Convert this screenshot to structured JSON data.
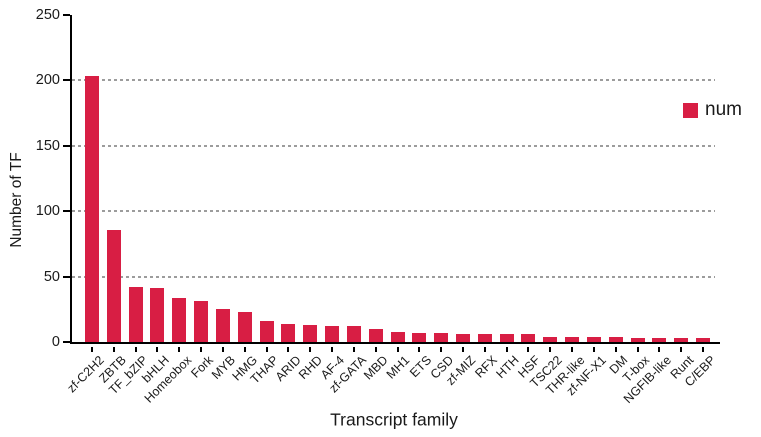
{
  "chart_data": {
    "type": "bar",
    "title": "",
    "xlabel": "Transcript family",
    "ylabel": "Number of TF",
    "series_name": "num",
    "bar_color": "#d81e44",
    "axis_color": "#000000",
    "gridline_color": "#9c9c9c",
    "text_color": "#1a1a1a",
    "grid": "horizontal dashed",
    "legend_position": "right",
    "ylim": [
      0,
      250
    ],
    "yticks": [
      0,
      50,
      100,
      150,
      200,
      250
    ],
    "gridlines": [
      50,
      100,
      150,
      200
    ],
    "categories": [
      "zf-C2H2",
      "ZBTB",
      "TF_bZIP",
      "bHLH",
      "Homeobox",
      "Fork",
      "MYB",
      "HMG",
      "THAP",
      "ARID",
      "RHD",
      "AF-4",
      "zf-GATA",
      "MBD",
      "MH1",
      "ETS",
      "CSD",
      "zf-MIZ",
      "RFX",
      "HTH",
      "HSF",
      "TSC22",
      "THR-like",
      "zf-NF-X1",
      "DM",
      "T-box",
      "NGFIB-like",
      "Runt",
      "C/EBP"
    ],
    "values": [
      203,
      86,
      42,
      41,
      34,
      31,
      25,
      23,
      16,
      14,
      13,
      12,
      12,
      10,
      8,
      7,
      7,
      6,
      6,
      6,
      6,
      4,
      4,
      4,
      4,
      3,
      3,
      3,
      3
    ]
  }
}
